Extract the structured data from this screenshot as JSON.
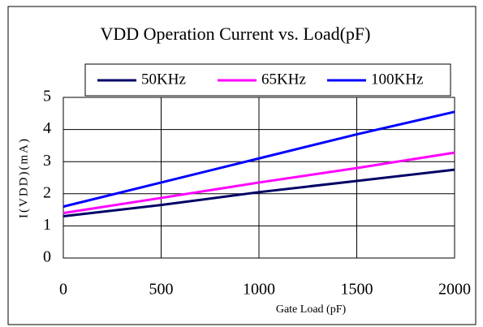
{
  "chart_data": {
    "type": "line",
    "title": "VDD Operation Current vs. Load(pF)",
    "x_label": "Gate Load (pF)",
    "y_label": "I(VDD)(mA)",
    "x": [
      0,
      500,
      1000,
      1500,
      2000
    ],
    "series": [
      {
        "name": "50KHz",
        "color": "#000066",
        "values": [
          1.3,
          1.65,
          2.05,
          2.4,
          2.75
        ]
      },
      {
        "name": "65KHz",
        "color": "#ff00ff",
        "values": [
          1.4,
          1.87,
          2.35,
          2.8,
          3.28
        ]
      },
      {
        "name": "100KHz",
        "color": "#0000ff",
        "values": [
          1.6,
          2.35,
          3.1,
          3.85,
          4.55
        ]
      }
    ],
    "xlim": [
      0,
      2000
    ],
    "xticks": [
      0,
      500,
      1000,
      1500,
      2000
    ],
    "ylim": [
      0,
      5
    ],
    "yticks": [
      0,
      1,
      2,
      3,
      4,
      5
    ],
    "grid": true,
    "legend": "top"
  }
}
